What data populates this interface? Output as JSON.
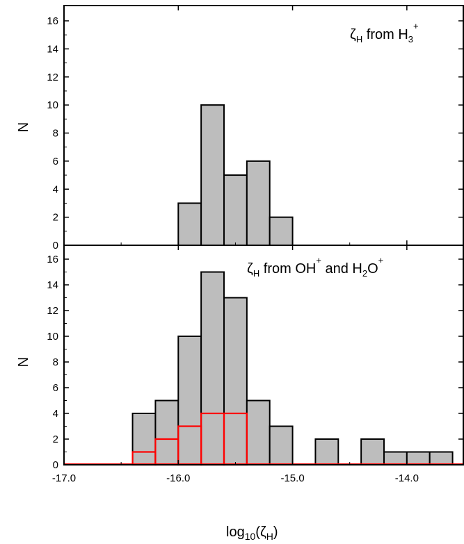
{
  "chart_data": [
    {
      "type": "bar",
      "panel": "top",
      "annotation": {
        "symbol": "ζ",
        "sub": "H",
        "text_a": " from H",
        "text_a_sub": "3",
        "text_a_sup": "+"
      },
      "ylabel": "N",
      "ylim": [
        0,
        17
      ],
      "yticks": [
        "0",
        "2",
        "4",
        "6",
        "8",
        "10",
        "12",
        "14",
        "16"
      ],
      "xlim": [
        -17.0,
        -13.5
      ],
      "bin_width": 0.2,
      "series": [
        {
          "color": "#bdbdbd",
          "edge": "#000000",
          "bins": [
            [
              -16.0,
              3
            ],
            [
              -15.8,
              10
            ],
            [
              -15.6,
              5
            ],
            [
              -15.4,
              6
            ],
            [
              -15.2,
              2
            ]
          ]
        }
      ]
    },
    {
      "type": "bar",
      "panel": "bottom",
      "annotation": {
        "symbol": "ζ",
        "sub": "H",
        "text_a": " from OH",
        "text_a_sup": "+",
        "text_b": " and H",
        "text_b_sub": "2",
        "text_b_tail": "O",
        "text_b_sup": "+"
      },
      "xlabel": "log10(ζH)",
      "ylabel": "N",
      "ylim": [
        0,
        17
      ],
      "yticks": [
        "0",
        "2",
        "4",
        "6",
        "8",
        "10",
        "12",
        "14",
        "16"
      ],
      "xlim": [
        -17.0,
        -13.5
      ],
      "xticks": [
        "-17.0",
        "-16.0",
        "-15.0",
        "-14.0"
      ],
      "bin_width": 0.2,
      "series": [
        {
          "color": "#bdbdbd",
          "edge": "#000000",
          "bins": [
            [
              -16.4,
              4
            ],
            [
              -16.2,
              5
            ],
            [
              -16.0,
              10
            ],
            [
              -15.8,
              15
            ],
            [
              -15.6,
              13
            ],
            [
              -15.4,
              5
            ],
            [
              -15.2,
              3
            ],
            [
              -14.8,
              2
            ],
            [
              -14.4,
              2
            ],
            [
              -14.2,
              1
            ],
            [
              -14.0,
              1
            ],
            [
              -13.8,
              1
            ]
          ]
        },
        {
          "color": "none",
          "edge": "#ff0000",
          "bins": [
            [
              -16.4,
              1
            ],
            [
              -16.2,
              2
            ],
            [
              -16.0,
              3
            ],
            [
              -15.8,
              4
            ],
            [
              -15.6,
              4
            ]
          ]
        }
      ]
    }
  ],
  "axis_labels": {
    "y_top": "N",
    "y_bottom": "N",
    "x_main": "log",
    "x_sub": "10",
    "x_paren_open": "(",
    "x_zeta": "ζ",
    "x_zeta_sub": "H",
    "x_paren_close": ")"
  }
}
